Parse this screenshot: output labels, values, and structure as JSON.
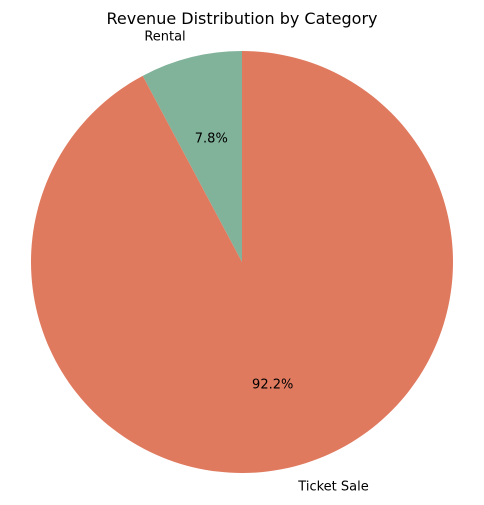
{
  "chart_data": {
    "type": "pie",
    "title": "Revenue Distribution by Category",
    "categories": [
      "Rental",
      "Ticket Sale"
    ],
    "values": [
      7.8,
      92.2
    ],
    "percent_labels": [
      "7.8%",
      "92.2%"
    ],
    "colors": [
      "#81b29a",
      "#e07a5f"
    ],
    "start_angle": "90",
    "direction": "counter-clockwise"
  }
}
